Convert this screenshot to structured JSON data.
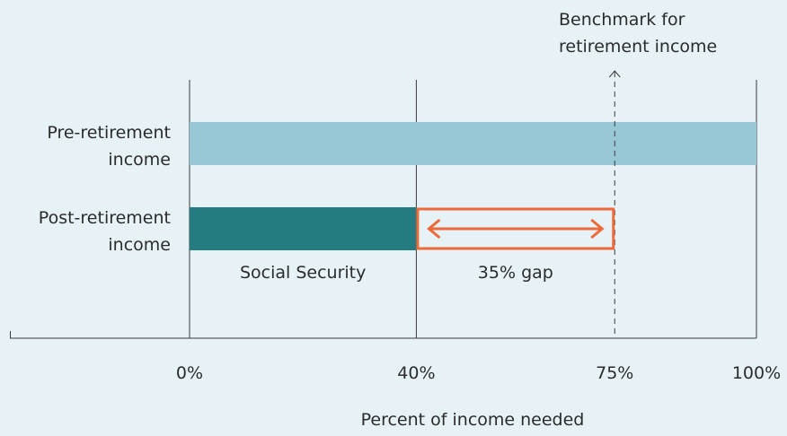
{
  "chart_data": {
    "type": "bar",
    "orientation": "horizontal",
    "categories": [
      {
        "lines": [
          "Pre-retirement",
          "income"
        ]
      },
      {
        "lines": [
          "Post-retirement",
          "income"
        ]
      }
    ],
    "series": [
      {
        "values": [
          100,
          40
        ]
      }
    ],
    "xlim": [
      0,
      100
    ],
    "x_ticks": [
      {
        "value": 0,
        "label": "0%"
      },
      {
        "value": 40,
        "label": "40%"
      },
      {
        "value": 75,
        "label": "75%"
      },
      {
        "value": 100,
        "label": "100%"
      }
    ],
    "xlabel": "Percent of income needed",
    "bar_colors": [
      "#98c8d6",
      "#247b80"
    ],
    "benchmark": {
      "value": 75,
      "label_lines": [
        "Benchmark for",
        "retirement income"
      ]
    },
    "gap": {
      "from": 40,
      "to": 75,
      "label": "35% gap",
      "color": "#ee6a3a"
    },
    "segment_labels": [
      {
        "from": 0,
        "to": 40,
        "label": "Social Security"
      }
    ],
    "grid": true
  }
}
